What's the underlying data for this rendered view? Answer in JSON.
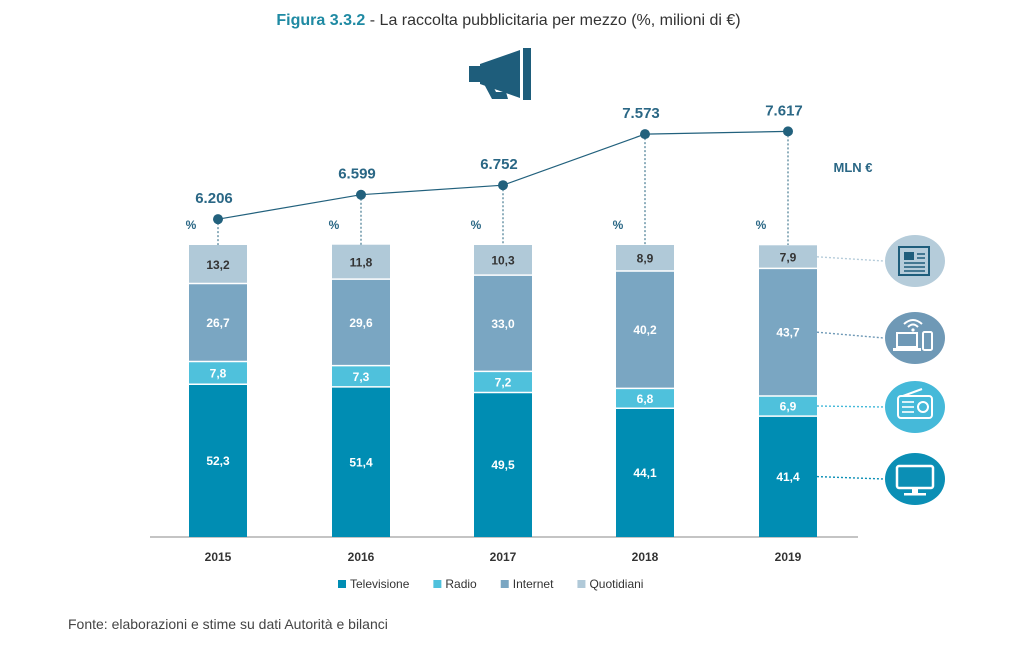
{
  "title": {
    "figure_label": "Figura 3.3.2",
    "separator": " - ",
    "text": "La raccolta pubblicitaria per mezzo (%, milioni di €)"
  },
  "source": "Fonte: elaborazioni e stime su dati Autorità e bilanci",
  "icons": {
    "header": "megaphone-icon",
    "quotidiani": "newspaper-icon",
    "internet": "devices-wifi-icon",
    "radio": "radio-icon",
    "televisione": "tv-icon"
  },
  "colors": {
    "televisione": "#008db3",
    "radio": "#4fc1dc",
    "internet": "#7aa6c2",
    "quotidiani": "#b0c9d8",
    "line": "#22617d",
    "total_text": "#2a6785",
    "icon_dark": "#1e5d7b",
    "icon_light": "#b5ccda",
    "icon_internet": "#6f99b6",
    "icon_radio": "#45b9d9",
    "icon_tv": "#0b8fb5"
  },
  "chart_data": {
    "type": "bar",
    "stacked": true,
    "categories": [
      "2015",
      "2016",
      "2017",
      "2018",
      "2019"
    ],
    "series": [
      {
        "name": "Televisione",
        "key": "televisione",
        "values": [
          52.3,
          51.4,
          49.5,
          44.1,
          41.4
        ],
        "labels": [
          "52,3",
          "51,4",
          "49,5",
          "44,1",
          "41,4"
        ]
      },
      {
        "name": "Radio",
        "key": "radio",
        "values": [
          7.8,
          7.3,
          7.2,
          6.8,
          6.9
        ],
        "labels": [
          "7,8",
          "7,3",
          "7,2",
          "6,8",
          "6,9"
        ]
      },
      {
        "name": "Internet",
        "key": "internet",
        "values": [
          26.7,
          29.6,
          33.0,
          40.2,
          43.7
        ],
        "labels": [
          "26,7",
          "29,6",
          "33,0",
          "40,2",
          "43,7"
        ]
      },
      {
        "name": "Quotidiani",
        "key": "quotidiani",
        "values": [
          13.2,
          11.8,
          10.3,
          8.9,
          7.9
        ],
        "labels": [
          "13,2",
          "11,8",
          "10,3",
          "8,9",
          "7,9"
        ]
      }
    ],
    "percent_label": "%",
    "totals": {
      "type": "line",
      "unit_label": "MLN €",
      "values": [
        6206,
        6599,
        6752,
        7573,
        7617
      ],
      "labels": [
        "6.206",
        "6.599",
        "6.752",
        "7.573",
        "7.617"
      ]
    },
    "legend_position": "bottom"
  }
}
